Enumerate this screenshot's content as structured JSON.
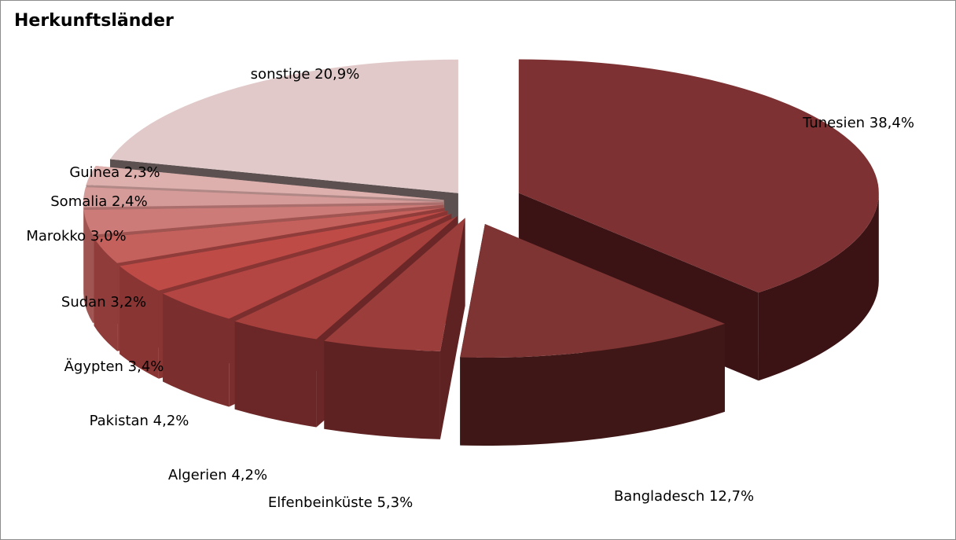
{
  "chart_data": {
    "type": "pie",
    "title": "Herkunftsländer",
    "slices": [
      {
        "label": "Tunesien 38,4%",
        "name": "Tunesien",
        "value": 38.4,
        "top": "#7d3132",
        "side": "#3b1314"
      },
      {
        "label": "Bangladesch 12,7%",
        "name": "Bangladesch",
        "value": 12.7,
        "top": "#7f3434",
        "side": "#401717"
      },
      {
        "label": "Elfenbeinküste 5,3%",
        "name": "Elfenbeinküste",
        "value": 5.3,
        "top": "#9a3d3b",
        "side": "#5f2222"
      },
      {
        "label": "Algerien 4,2%",
        "name": "Algerien",
        "value": 4.2,
        "top": "#a5403d",
        "side": "#6b2727"
      },
      {
        "label": "Pakistan 4,2%",
        "name": "Pakistan",
        "value": 4.2,
        "top": "#b34542",
        "side": "#7a2f2e"
      },
      {
        "label": "Ägypten 3,4%",
        "name": "Ägypten",
        "value": 3.4,
        "top": "#bf4b47",
        "side": "#883533"
      },
      {
        "label": "Sudan 3,2%",
        "name": "Sudan",
        "value": 3.2,
        "top": "#c4615c",
        "side": "#8f3c3a"
      },
      {
        "label": "Marokko 3,0%",
        "name": "Marokko",
        "value": 3.0,
        "top": "#cc7b78",
        "side": "#a05552"
      },
      {
        "label": "Somalia 2,4%",
        "name": "Somalia",
        "value": 2.4,
        "top": "#d59b99",
        "side": "#aa6f6d"
      },
      {
        "label": "Guinea 2,3%",
        "name": "Guinea",
        "value": 2.3,
        "top": "#ddb0ae",
        "side": "#b08987"
      },
      {
        "label": "sonstige 20,9%",
        "name": "sonstige",
        "value": 20.9,
        "top": "#e2c9c9",
        "side": "#5c5150"
      }
    ]
  }
}
